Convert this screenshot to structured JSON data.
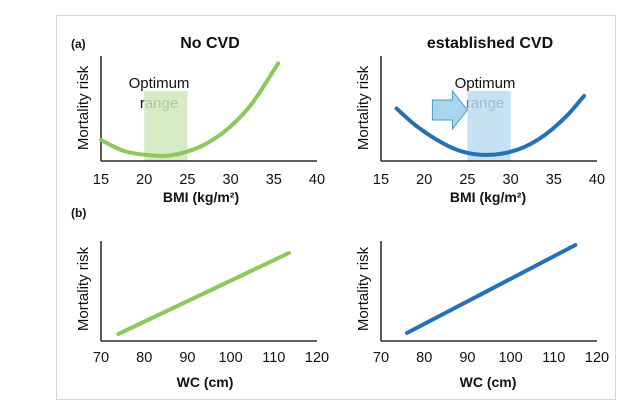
{
  "panel_labels": [
    "(a)",
    "(b)"
  ],
  "colors": {
    "no_cvd": "#8cc95b",
    "established_cvd": "#2671b6",
    "band_green": "#cfe6b8",
    "band_blue": "#bcdcef",
    "arrow": "#a9d6ea"
  },
  "chart_data": [
    {
      "type": "line",
      "title": "No CVD",
      "xlabel": "BMI (kg/m²)",
      "ylabel": "Mortality risk",
      "xlim": [
        15,
        40
      ],
      "xticks": [
        "15",
        "20",
        "25",
        "30",
        "35",
        "40"
      ],
      "ylim": [
        0,
        1
      ],
      "band": {
        "label_line1": "Optimum",
        "label_line2": "range",
        "range": [
          20,
          25
        ]
      },
      "series": [
        {
          "x": [
            15,
            17.5,
            20,
            22.5,
            25,
            27.5,
            30,
            32.5,
            35.5
          ],
          "y": [
            0.2,
            0.1,
            0.06,
            0.05,
            0.09,
            0.18,
            0.33,
            0.55,
            0.93
          ]
        }
      ]
    },
    {
      "type": "line",
      "title": "established CVD",
      "xlabel": "BMI (kg/m²)",
      "ylabel": "Mortality risk",
      "xlim": [
        15,
        40
      ],
      "xticks": [
        "15",
        "20",
        "25",
        "30",
        "35",
        "40"
      ],
      "ylim": [
        0,
        1
      ],
      "band": {
        "label_line1": "Optimum",
        "label_line2": "range",
        "range": [
          25,
          30
        ]
      },
      "arrow": true,
      "series": [
        {
          "x": [
            16.8,
            19,
            21.5,
            24,
            26.5,
            29,
            31.5,
            34,
            36.5,
            38.5
          ],
          "y": [
            0.5,
            0.34,
            0.2,
            0.1,
            0.06,
            0.07,
            0.13,
            0.25,
            0.43,
            0.62
          ]
        }
      ]
    },
    {
      "type": "line",
      "xlabel": "WC (cm)",
      "ylabel": "Mortality risk",
      "xlim": [
        70,
        120
      ],
      "xticks": [
        "70",
        "80",
        "90",
        "100",
        "110",
        "120"
      ],
      "ylim": [
        0,
        1
      ],
      "series": [
        {
          "x": [
            74,
            113.5
          ],
          "y": [
            0.07,
            0.88
          ]
        }
      ]
    },
    {
      "type": "line",
      "xlabel": "WC (cm)",
      "ylabel": "Mortality risk",
      "xlim": [
        70,
        120
      ],
      "xticks": [
        "70",
        "80",
        "90",
        "100",
        "110",
        "120"
      ],
      "ylim": [
        0,
        1
      ],
      "series": [
        {
          "x": [
            76,
            115
          ],
          "y": [
            0.08,
            0.96
          ]
        }
      ]
    }
  ]
}
